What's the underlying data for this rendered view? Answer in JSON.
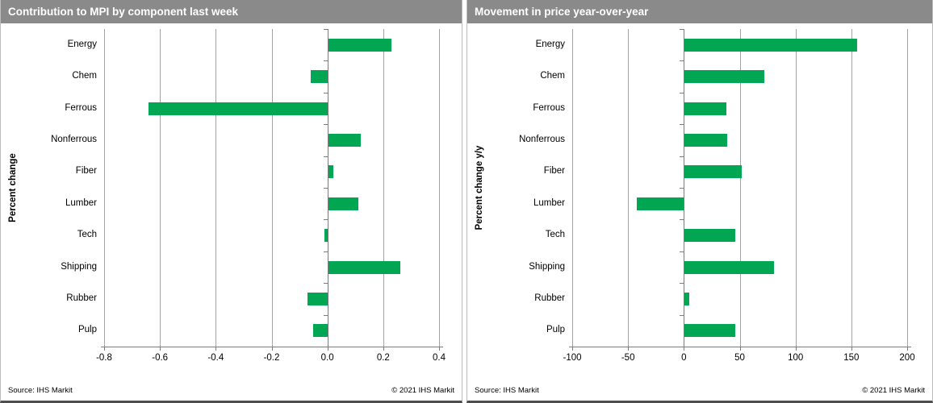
{
  "colors": {
    "bar_green": "#00A651",
    "title_bar_gray": "#8A8A8A",
    "gridline_gray": "#A3A3A3"
  },
  "chart_data": [
    {
      "type": "bar",
      "orientation": "horizontal",
      "title": "Contribution to MPI by component last week",
      "ylabel": "Percent change",
      "categories": [
        "Energy",
        "Chem",
        "Ferrous",
        "Nonferrous",
        "Fiber",
        "Lumber",
        "Tech",
        "Shipping",
        "Rubber",
        "Pulp"
      ],
      "values": [
        0.23,
        -0.06,
        -0.64,
        0.12,
        0.02,
        0.11,
        -0.01,
        0.26,
        -0.07,
        -0.05
      ],
      "xlim": [
        -0.8,
        0.4
      ],
      "xticks": [
        -0.8,
        -0.6,
        -0.4,
        -0.2,
        0.0,
        0.2,
        0.4
      ],
      "xtick_labels": [
        "-0.8",
        "-0.6",
        "-0.4",
        "-0.2",
        "0.0",
        "0.2",
        "0.4"
      ],
      "grid": true,
      "legend": "none",
      "bar_color": "#00A651",
      "source": "Source:  IHS Markit",
      "copyright": "© 2021  IHS Markit"
    },
    {
      "type": "bar",
      "orientation": "horizontal",
      "title": "Movement in price year-over-year",
      "ylabel": "Percent change y/y",
      "categories": [
        "Energy",
        "Chem",
        "Ferrous",
        "Nonferrous",
        "Fiber",
        "Lumber",
        "Tech",
        "Shipping",
        "Rubber",
        "Pulp"
      ],
      "values": [
        155,
        72,
        38,
        39,
        52,
        -42,
        46,
        81,
        5,
        46
      ],
      "xlim": [
        -100,
        200
      ],
      "xticks": [
        -100,
        -50,
        0,
        50,
        100,
        150,
        200
      ],
      "xtick_labels": [
        "-100",
        "-50",
        "0",
        "50",
        "100",
        "150",
        "200"
      ],
      "grid": true,
      "legend": "none",
      "bar_color": "#00A651",
      "source": "Source:  IHS Markit",
      "copyright": "© 2021  IHS Markit"
    }
  ]
}
